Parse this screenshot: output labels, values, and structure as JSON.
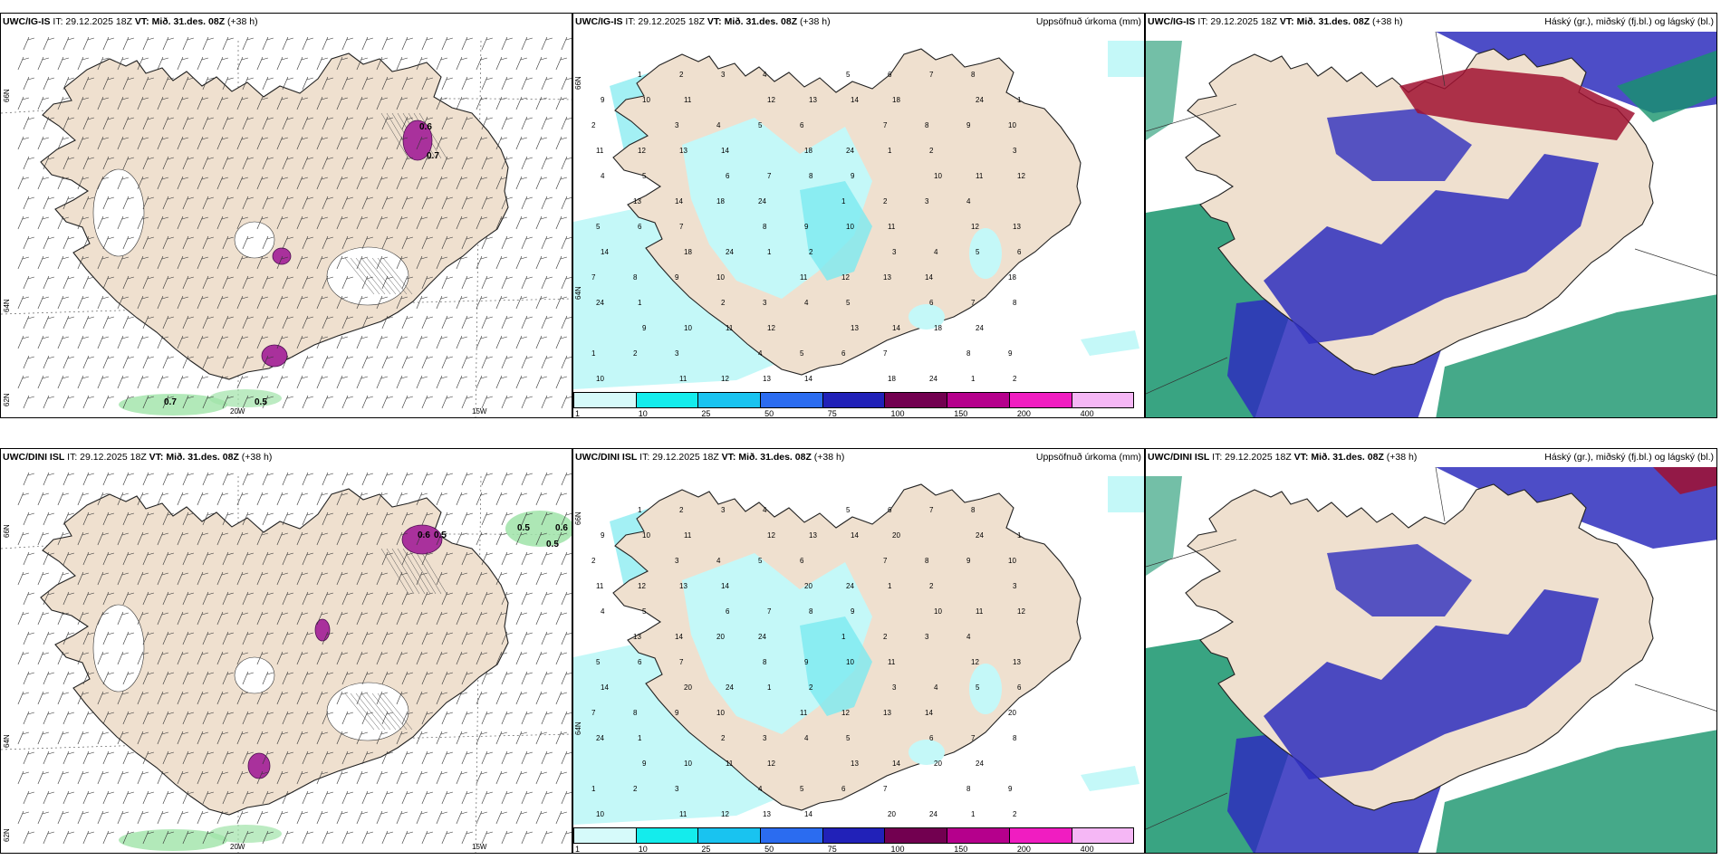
{
  "rows": [
    {
      "model_bold": "UWC/IG-IS",
      "it_text": " IT: 29.12.2025 18Z ",
      "vt_bold": "VT: Mið. 31.des. 08Z",
      "lead_text": " (+38 h)"
    },
    {
      "model_bold": "UWC/DINI ISL",
      "it_text": " IT: 29.12.2025 18Z ",
      "vt_bold": "VT: Mið. 31.des. 08Z",
      "lead_text": " (+38 h)"
    }
  ],
  "precip_title": "Uppsöfnuð úrkoma (mm)",
  "cloud_title": "Háský (gr.), miðský (fj.bl.) og lágský (bl.)",
  "colorbar": {
    "labels": [
      "1",
      "10",
      "25",
      "50",
      "75",
      "100",
      "150",
      "200",
      "400"
    ],
    "colors": [
      "#d6fafa",
      "#14ecec",
      "#19c3f0",
      "#2b6cf0",
      "#2121b8",
      "#720050",
      "#b5008c",
      "#f01dc1",
      "#f5b7f5"
    ]
  },
  "axis_labels": {
    "lon_20w": "20W",
    "lon_15w": "15W",
    "lat_66n": "66N",
    "lat_64n": "64N",
    "lat_62n": "62N"
  },
  "wind_values_top": [
    "0.7",
    "0.5",
    "0.6",
    "0.7"
  ],
  "wind_values_bottom": [
    "0.5",
    "0.6",
    "0.5",
    "0.6",
    "0.5"
  ],
  "precip_numbers_top": [
    "1",
    "2",
    "3",
    "4",
    "5",
    "6",
    "7",
    "8",
    "9",
    "10",
    "11",
    "12",
    "13",
    "14",
    "18",
    "24"
  ],
  "precip_numbers_bottom": [
    "1",
    "2",
    "3",
    "4",
    "5",
    "6",
    "7",
    "8",
    "9",
    "10",
    "11",
    "12",
    "13",
    "14",
    "20",
    "24"
  ],
  "colors": {
    "land": "#efe0cf",
    "precip_light": "#c4f8f8",
    "precip_mid": "#7ceaf0",
    "cloud_high": "#a01030",
    "cloud_mid": "#2e2ebd",
    "cloud_low": "#16946c",
    "snow_purple": "#a9319c",
    "rain_green": "#9fe3a8"
  }
}
